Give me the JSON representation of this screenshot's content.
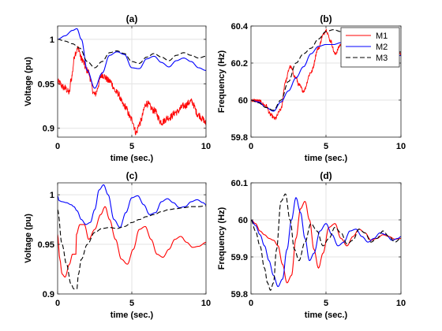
{
  "chart_data": [
    {
      "type": "line",
      "title": "(a)",
      "xlabel": "time (sec.)",
      "ylabel": "Voltage (pu)",
      "xlim": [
        0,
        10
      ],
      "ylim": [
        0.89,
        1.015
      ],
      "xticks": [
        0,
        5,
        10
      ],
      "yticks": [
        0.9,
        0.95,
        1
      ],
      "ytick_labels": [
        "0.9",
        "0.95",
        "1"
      ],
      "grid": true,
      "series": [
        {
          "name": "M1",
          "color": "#ff0000",
          "dash": "solid",
          "noise": 0.004,
          "x": [
            0,
            0.5,
            0.8,
            0.9,
            1.2,
            1.4,
            1.6,
            2,
            2.5,
            3,
            3.5,
            4,
            4.5,
            5,
            5.3,
            5.5,
            6,
            6.5,
            7,
            7.5,
            8,
            8.5,
            9,
            9.5,
            9.8,
            10
          ],
          "y": [
            0.952,
            0.945,
            0.94,
            0.955,
            0.985,
            0.99,
            0.978,
            0.965,
            0.938,
            0.96,
            0.953,
            0.94,
            0.925,
            0.91,
            0.895,
            0.905,
            0.928,
            0.92,
            0.907,
            0.912,
            0.918,
            0.925,
            0.93,
            0.915,
            0.91,
            0.905
          ]
        },
        {
          "name": "M2",
          "color": "#0000ff",
          "dash": "solid",
          "noise": 0,
          "x": [
            0,
            0.5,
            1,
            1.3,
            1.6,
            2,
            2.5,
            3,
            3.5,
            4,
            4.5,
            5,
            5.5,
            6,
            6.5,
            7,
            7.5,
            8,
            8.5,
            9,
            9.5,
            10
          ],
          "y": [
            1.0,
            1.004,
            1.01,
            1.012,
            1.0,
            0.965,
            0.945,
            0.962,
            0.982,
            0.986,
            0.983,
            0.968,
            0.967,
            0.978,
            0.981,
            0.974,
            0.969,
            0.976,
            0.979,
            0.975,
            0.968,
            0.965
          ]
        },
        {
          "name": "M3",
          "color": "#000000",
          "dash": "dashed",
          "noise": 0,
          "x": [
            0,
            0.5,
            1,
            1.5,
            2,
            2.5,
            3,
            3.5,
            4,
            4.5,
            5,
            5.5,
            6,
            6.5,
            7,
            7.5,
            8,
            8.5,
            9,
            9.5,
            10
          ],
          "y": [
            1.0,
            0.998,
            0.995,
            0.99,
            0.975,
            0.968,
            0.975,
            0.985,
            0.987,
            0.984,
            0.975,
            0.973,
            0.98,
            0.984,
            0.98,
            0.976,
            0.982,
            0.985,
            0.982,
            0.979,
            0.981
          ]
        }
      ]
    },
    {
      "type": "line",
      "title": "(b)",
      "xlabel": "time (sec.)",
      "ylabel": "Frequency (Hz)",
      "xlim": [
        0,
        10
      ],
      "ylim": [
        59.8,
        60.4
      ],
      "xticks": [
        0,
        5,
        10
      ],
      "yticks": [
        59.8,
        60,
        60.2,
        60.4
      ],
      "ytick_labels": [
        "59.8",
        "60",
        "60.2",
        "60.4"
      ],
      "grid": true,
      "legend": {
        "placement": "top-right",
        "entries": [
          "M1",
          "M2",
          "M3"
        ]
      },
      "series": [
        {
          "name": "M1",
          "color": "#ff0000",
          "dash": "solid",
          "noise": 0.01,
          "x": [
            0,
            0.5,
            1,
            1.3,
            1.6,
            2,
            2.3,
            2.6,
            3,
            3.2,
            3.5,
            4,
            4.5,
            4.8,
            5,
            5.3,
            5.6,
            6,
            6.5,
            7,
            7.5,
            8,
            8.5,
            9,
            9.5,
            10
          ],
          "y": [
            60.0,
            59.995,
            59.97,
            59.92,
            59.9,
            59.95,
            60.1,
            60.18,
            60.12,
            60.08,
            60.05,
            60.15,
            60.28,
            60.35,
            60.38,
            60.32,
            60.25,
            60.3,
            60.36,
            60.3,
            60.24,
            60.28,
            60.3,
            60.32,
            60.28,
            60.25
          ]
        },
        {
          "name": "M2",
          "color": "#0000ff",
          "dash": "solid",
          "noise": 0,
          "x": [
            0,
            0.5,
            1,
            1.5,
            2,
            2.5,
            3,
            3.5,
            4,
            4.5,
            5,
            5.5,
            6,
            6.5,
            7,
            7.5,
            8,
            8.5,
            9,
            9.5,
            10
          ],
          "y": [
            60.0,
            59.99,
            59.96,
            59.94,
            59.99,
            60.05,
            60.12,
            60.18,
            60.25,
            60.29,
            60.3,
            60.3,
            60.31,
            60.32,
            60.31,
            60.28,
            60.27,
            60.27,
            60.26,
            60.25,
            60.24
          ]
        },
        {
          "name": "M3",
          "color": "#000000",
          "dash": "dashed",
          "noise": 0,
          "x": [
            0,
            0.5,
            1,
            1.5,
            2,
            2.5,
            3,
            3.5,
            4,
            4.5,
            5,
            5.5,
            6,
            6.5,
            7,
            7.5,
            8,
            8.5,
            9,
            9.5,
            10
          ],
          "y": [
            60.0,
            59.985,
            59.96,
            59.945,
            60.0,
            60.1,
            60.2,
            60.25,
            60.28,
            60.33,
            60.37,
            60.38,
            60.37,
            60.33,
            60.3,
            60.29,
            60.28,
            60.27,
            60.28,
            60.27,
            60.26
          ]
        }
      ]
    },
    {
      "type": "line",
      "title": "(c)",
      "xlabel": "time (sec.)",
      "ylabel": "Voltage (pu)",
      "xlim": [
        0,
        10
      ],
      "ylim": [
        0.9,
        1.012
      ],
      "xticks": [
        0,
        5,
        10
      ],
      "yticks": [
        0.9,
        0.95,
        1
      ],
      "ytick_labels": [
        "0.9",
        "0.95",
        "1"
      ],
      "grid": true,
      "series": [
        {
          "name": "M1",
          "color": "#ff0000",
          "dash": "solid",
          "noise": 0,
          "x": [
            0,
            0.15,
            0.3,
            0.5,
            0.8,
            1.0,
            1.25,
            1.26,
            1.5,
            1.8,
            2.1,
            2.5,
            2.9,
            3.2,
            3.5,
            3.9,
            4.3,
            4.7,
            5.1,
            5.5,
            5.9,
            6.3,
            6.7,
            7.1,
            7.5,
            7.9,
            8.3,
            8.7,
            9.1,
            9.5,
            10
          ],
          "y": [
            0.96,
            0.935,
            0.92,
            0.917,
            0.93,
            0.94,
            0.94,
            0.96,
            0.97,
            0.97,
            0.955,
            0.965,
            0.98,
            0.988,
            0.975,
            0.955,
            0.935,
            0.93,
            0.945,
            0.965,
            0.968,
            0.955,
            0.94,
            0.937,
            0.945,
            0.955,
            0.958,
            0.952,
            0.947,
            0.948,
            0.952
          ]
        },
        {
          "name": "M2",
          "color": "#0000ff",
          "dash": "solid",
          "noise": 0,
          "x": [
            0,
            0.1,
            0.3,
            0.6,
            0.9,
            1.1,
            1.3,
            1.6,
            1.9,
            2.2,
            2.5,
            2.8,
            3.1,
            3.4,
            3.8,
            4.2,
            4.6,
            5.0,
            5.4,
            5.8,
            6.2,
            6.6,
            7.0,
            7.4,
            7.8,
            8.2,
            8.6,
            9.0,
            9.4,
            9.8,
            10
          ],
          "y": [
            0.999,
            0.994,
            0.993,
            0.992,
            0.99,
            0.988,
            0.984,
            0.975,
            0.97,
            0.972,
            0.985,
            1.005,
            1.01,
            1.0,
            0.975,
            0.967,
            0.982,
            0.997,
            0.999,
            0.99,
            0.98,
            0.982,
            0.993,
            0.996,
            0.992,
            0.987,
            0.988,
            0.993,
            0.995,
            0.992,
            0.99
          ]
        },
        {
          "name": "M3",
          "color": "#000000",
          "dash": "dashed",
          "noise": 0,
          "x": [
            0,
            0.3,
            0.6,
            0.9,
            1.1,
            1.3,
            1.4,
            1.6,
            2.0,
            2.5,
            3.0,
            3.5,
            4.0,
            4.5,
            5.0,
            5.5,
            6.0,
            6.5,
            7.0,
            7.5,
            8.0,
            8.5,
            9.0,
            9.5,
            10
          ],
          "y": [
            0.985,
            0.95,
            0.93,
            0.91,
            0.905,
            0.905,
            0.92,
            0.935,
            0.95,
            0.962,
            0.966,
            0.967,
            0.966,
            0.968,
            0.972,
            0.975,
            0.978,
            0.98,
            0.983,
            0.985,
            0.986,
            0.987,
            0.988,
            0.988,
            0.989
          ]
        }
      ]
    },
    {
      "type": "line",
      "title": "(d)",
      "xlabel": "time (sec.)",
      "ylabel": "Frequency (Hz)",
      "xlim": [
        0,
        10
      ],
      "ylim": [
        59.8,
        60.1
      ],
      "xticks": [
        0,
        5,
        10
      ],
      "yticks": [
        59.8,
        59.9,
        60,
        60.1
      ],
      "ytick_labels": [
        "59.8",
        "59.9",
        "60",
        "60.1"
      ],
      "grid": true,
      "series": [
        {
          "name": "M1",
          "color": "#ff0000",
          "dash": "solid",
          "noise": 0,
          "x": [
            0,
            0.3,
            0.6,
            0.9,
            1.2,
            1.5,
            1.8,
            2.1,
            2.4,
            2.7,
            3.0,
            3.3,
            3.6,
            3.9,
            4.2,
            4.5,
            4.8,
            5.2,
            5.6,
            6.0,
            6.4,
            6.8,
            7.2,
            7.6,
            8.0,
            8.4,
            8.8,
            9.2,
            9.6,
            10
          ],
          "y": [
            60.0,
            59.99,
            59.97,
            59.96,
            59.95,
            59.945,
            59.93,
            59.88,
            59.83,
            59.85,
            59.95,
            60.03,
            60.05,
            60.0,
            59.92,
            59.87,
            59.91,
            59.98,
            59.99,
            59.95,
            59.93,
            59.955,
            59.975,
            59.965,
            59.945,
            59.95,
            59.96,
            59.955,
            59.948,
            59.95
          ]
        },
        {
          "name": "M2",
          "color": "#0000ff",
          "dash": "solid",
          "noise": 0,
          "x": [
            0,
            0.3,
            0.6,
            0.9,
            1.2,
            1.5,
            1.8,
            2.1,
            2.4,
            2.7,
            3.0,
            3.3,
            3.6,
            3.9,
            4.2,
            4.6,
            5.0,
            5.4,
            5.8,
            6.2,
            6.6,
            7.0,
            7.4,
            7.8,
            8.2,
            8.6,
            9.0,
            9.4,
            9.8,
            10
          ],
          "y": [
            60.0,
            59.985,
            59.96,
            59.93,
            59.89,
            59.85,
            59.82,
            59.84,
            59.92,
            60.0,
            60.06,
            60.02,
            59.95,
            59.89,
            59.91,
            59.97,
            59.99,
            59.96,
            59.93,
            59.94,
            59.97,
            59.975,
            59.955,
            59.94,
            59.95,
            59.965,
            59.96,
            59.945,
            59.95,
            59.955
          ]
        },
        {
          "name": "M3",
          "color": "#000000",
          "dash": "dashed",
          "noise": 0,
          "x": [
            0,
            0.3,
            0.6,
            0.9,
            1.1,
            1.3,
            1.5,
            1.7,
            2.0,
            2.3,
            2.6,
            2.9,
            3.2,
            3.6,
            4.0,
            4.4,
            4.8,
            5.2,
            5.6,
            6.0,
            6.4,
            6.8,
            7.2,
            7.6,
            8.0,
            8.4,
            8.8,
            9.2,
            9.6,
            10
          ],
          "y": [
            60.0,
            59.97,
            59.93,
            59.87,
            59.83,
            59.81,
            59.83,
            59.92,
            60.05,
            60.07,
            60.0,
            59.92,
            59.89,
            59.94,
            59.99,
            59.97,
            59.93,
            59.95,
            59.98,
            59.965,
            59.935,
            59.945,
            59.975,
            59.965,
            59.94,
            59.95,
            59.97,
            59.955,
            59.94,
            59.95
          ]
        }
      ]
    }
  ]
}
